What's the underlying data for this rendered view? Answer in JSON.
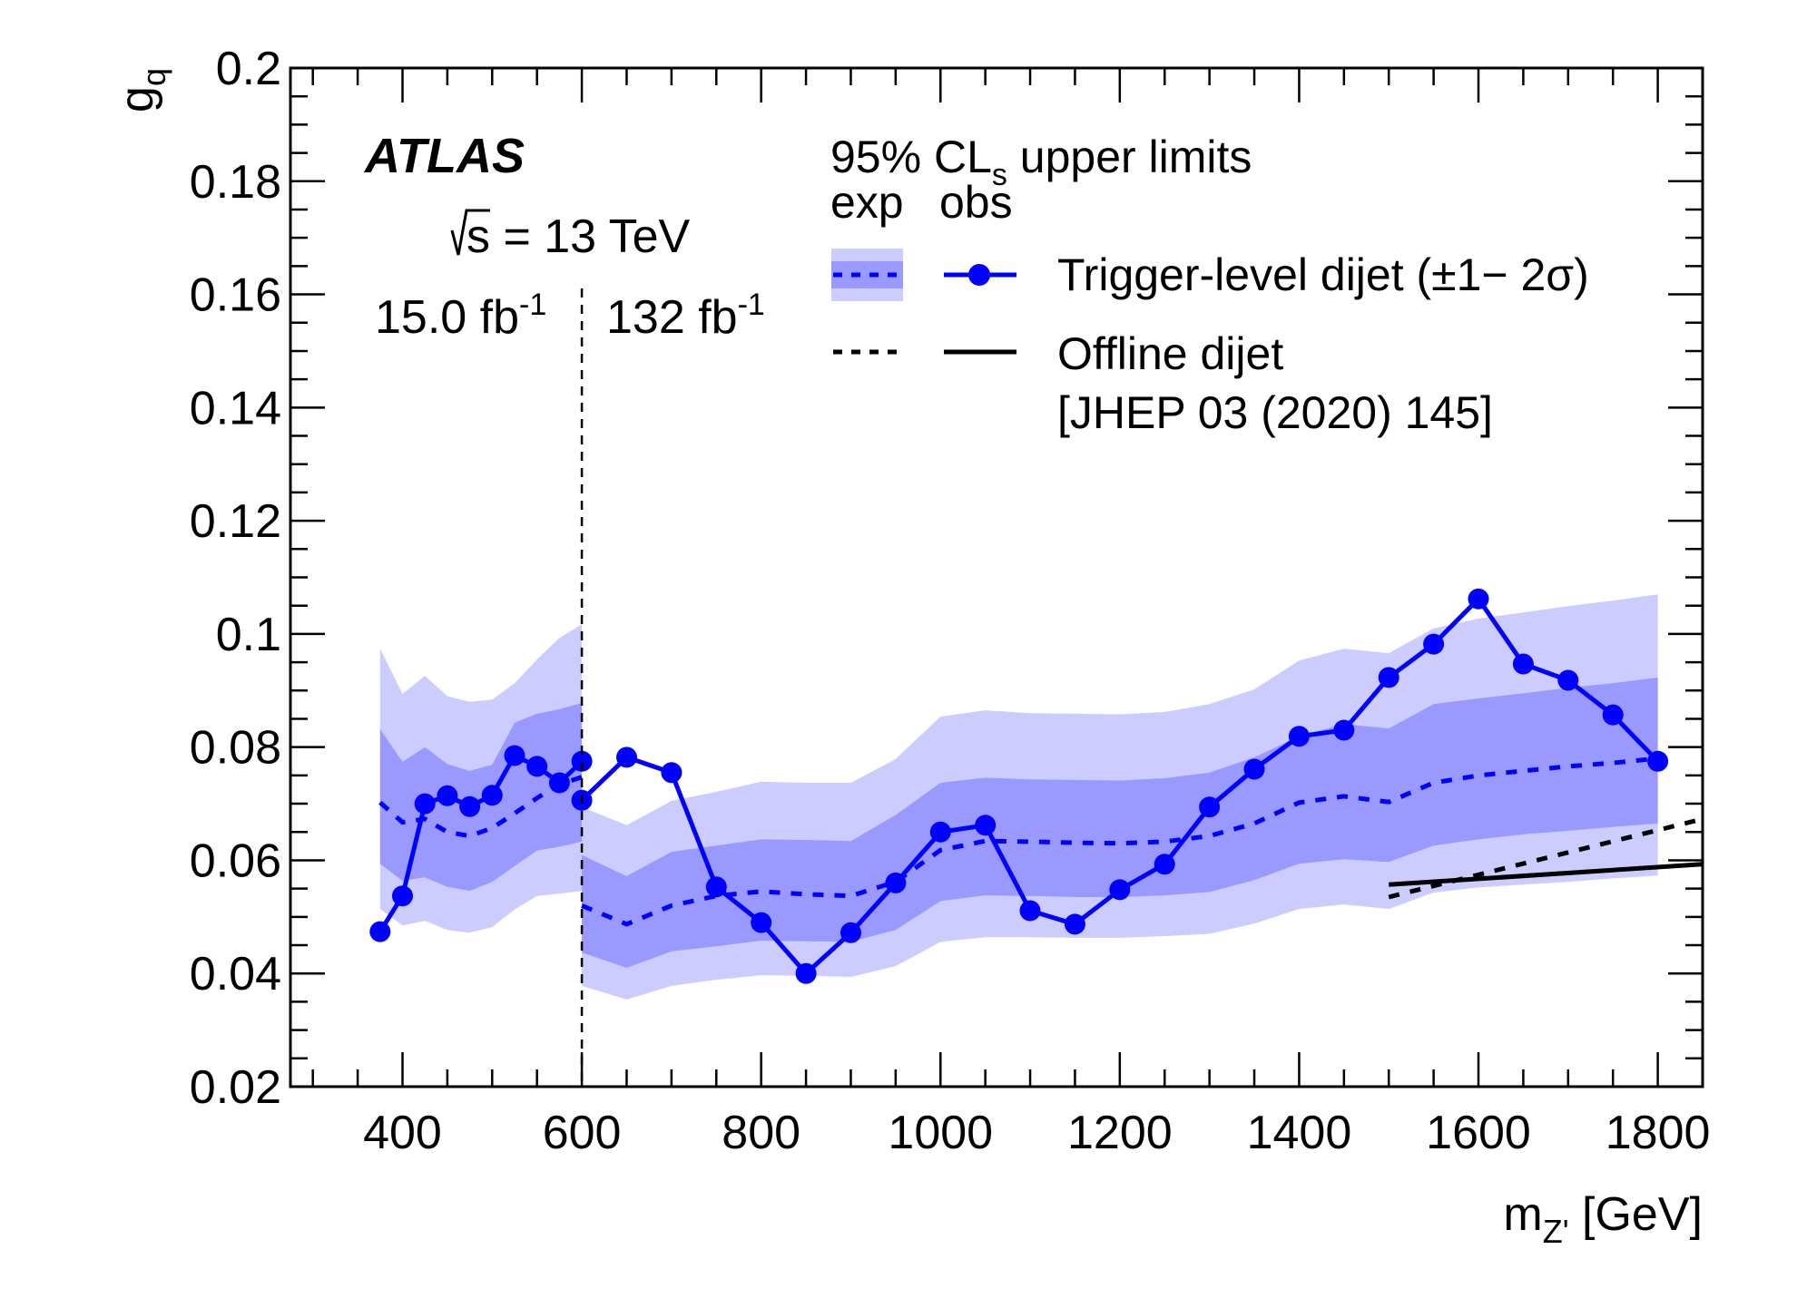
{
  "chart_data": {
    "type": "line",
    "title": "",
    "xlabel": "m_Z' [GeV]",
    "xlabel_parts": {
      "main": "m",
      "sub": "Z'",
      "unit": " [GeV]"
    },
    "ylabel": "g_q",
    "ylabel_parts": {
      "main": "g",
      "sub": "q"
    },
    "xlim": [
      275,
      1850
    ],
    "ylim": [
      0.02,
      0.2
    ],
    "x_ticks": [
      400,
      600,
      800,
      1000,
      1200,
      1400,
      1600,
      1800
    ],
    "x_tick_labels": [
      "400",
      "600",
      "800",
      "1000",
      "1200",
      "1400",
      "1600",
      "1800"
    ],
    "x_minor_step": 50,
    "y_ticks": [
      0.02,
      0.04,
      0.06,
      0.08,
      0.1,
      0.12,
      0.14,
      0.16,
      0.18,
      0.2
    ],
    "y_tick_labels": [
      "0.02",
      "0.04",
      "0.06",
      "0.08",
      "0.1",
      "0.12",
      "0.14",
      "0.16",
      "0.18",
      "0.2"
    ],
    "y_minor_step": 0.005,
    "grid": false,
    "annotations": {
      "experiment": "ATLAS",
      "energy_prefix": "s",
      "energy_text": " = 13 TeV",
      "lumi_left": "15.0 fb",
      "lumi_left_sup": "-1",
      "lumi_right": "132 fb",
      "lumi_right_sup": "-1",
      "divider_x": 600
    },
    "legend": {
      "placement": "top-right",
      "header_main": "95% CL",
      "header_sub": "s",
      "header_rest": " upper limits",
      "col_exp": "exp",
      "col_obs": "obs",
      "entries": [
        {
          "label": "Trigger-level dijet (±1− 2σ)",
          "exp_style": "blue-dashed-with-bands",
          "obs_style": "blue-line-markers"
        },
        {
          "label": "Offline dijet",
          "label_line2": "[JHEP 03 (2020) 145]",
          "exp_style": "black-dashed",
          "obs_style": "black-solid"
        }
      ]
    },
    "colors": {
      "band_2sigma": "#ccccff",
      "band_1sigma": "#9999ff",
      "trigger": "#0000ff",
      "offline": "#000000"
    },
    "series": [
      {
        "name": "Trigger-level dijet 15.0 fb-1 (expected bands)",
        "kind": "bands",
        "x": [
          375,
          400,
          425,
          450,
          475,
          500,
          525,
          550,
          575,
          600
        ],
        "exp": [
          0.0702,
          0.0667,
          0.0673,
          0.065,
          0.0643,
          0.0657,
          0.0683,
          0.071,
          0.0734,
          0.0747
        ],
        "plus1": [
          0.0832,
          0.0774,
          0.08,
          0.077,
          0.0758,
          0.0769,
          0.0843,
          0.0859,
          0.0867,
          0.0878
        ],
        "minus1": [
          0.0594,
          0.0564,
          0.057,
          0.0553,
          0.0546,
          0.0562,
          0.059,
          0.0617,
          0.0624,
          0.0633
        ],
        "plus2": [
          0.0974,
          0.0894,
          0.0926,
          0.089,
          0.088,
          0.0884,
          0.0913,
          0.0955,
          0.0993,
          0.1017
        ],
        "minus2": [
          0.0514,
          0.0485,
          0.0493,
          0.0477,
          0.0472,
          0.0482,
          0.0513,
          0.0537,
          0.0541,
          0.0546
        ]
      },
      {
        "name": "Trigger-level dijet 132 fb-1 (expected bands)",
        "kind": "bands",
        "x": [
          600,
          650,
          700,
          750,
          800,
          850,
          900,
          950,
          1000,
          1050,
          1100,
          1150,
          1200,
          1250,
          1300,
          1350,
          1400,
          1450,
          1500,
          1550,
          1600,
          1650,
          1700,
          1750,
          1800
        ],
        "exp": [
          0.052,
          0.0487,
          0.052,
          0.0537,
          0.0545,
          0.054,
          0.0537,
          0.0562,
          0.0618,
          0.0634,
          0.0633,
          0.0631,
          0.063,
          0.0633,
          0.0643,
          0.0665,
          0.0702,
          0.0713,
          0.0703,
          0.0737,
          0.075,
          0.0758,
          0.0766,
          0.0772,
          0.078
        ],
        "plus1": [
          0.0609,
          0.0572,
          0.0615,
          0.0626,
          0.0637,
          0.0636,
          0.0634,
          0.068,
          0.0737,
          0.0746,
          0.0743,
          0.0742,
          0.0741,
          0.0745,
          0.0755,
          0.0782,
          0.0819,
          0.0841,
          0.0833,
          0.0876,
          0.0886,
          0.0895,
          0.0905,
          0.0913,
          0.0923
        ],
        "minus1": [
          0.0437,
          0.041,
          0.0439,
          0.0448,
          0.0458,
          0.0457,
          0.0456,
          0.0477,
          0.0528,
          0.0538,
          0.0537,
          0.0535,
          0.0535,
          0.0538,
          0.0544,
          0.0565,
          0.0594,
          0.0602,
          0.0597,
          0.0626,
          0.0637,
          0.0646,
          0.0652,
          0.0659,
          0.0665
        ],
        "plus2": [
          0.0694,
          0.0662,
          0.0705,
          0.0721,
          0.0739,
          0.0737,
          0.0737,
          0.0779,
          0.0854,
          0.0865,
          0.086,
          0.0859,
          0.0858,
          0.0862,
          0.0876,
          0.0902,
          0.0953,
          0.0974,
          0.0966,
          0.101,
          0.1027,
          0.1038,
          0.1049,
          0.1059,
          0.107
        ],
        "minus2": [
          0.0378,
          0.0354,
          0.0378,
          0.0389,
          0.0397,
          0.0396,
          0.0394,
          0.0413,
          0.0456,
          0.0464,
          0.0464,
          0.0463,
          0.0463,
          0.0466,
          0.047,
          0.0488,
          0.0514,
          0.0522,
          0.0514,
          0.0543,
          0.0552,
          0.0557,
          0.0562,
          0.0568,
          0.0573
        ]
      },
      {
        "name": "Trigger-level dijet 15.0 fb-1 (observed)",
        "kind": "observed",
        "x": [
          375,
          400,
          425,
          450,
          475,
          500,
          525,
          550,
          575,
          600
        ],
        "y": [
          0.0474,
          0.0537,
          0.07,
          0.0714,
          0.0695,
          0.0715,
          0.0785,
          0.0766,
          0.0737,
          0.0775
        ]
      },
      {
        "name": "Trigger-level dijet 132 fb-1 (observed)",
        "kind": "observed",
        "x": [
          600,
          650,
          700,
          750,
          800,
          850,
          900,
          950,
          1000,
          1050,
          1100,
          1150,
          1200,
          1250,
          1300,
          1350,
          1400,
          1450,
          1500,
          1550,
          1600,
          1650,
          1700,
          1750,
          1800
        ],
        "y": [
          0.0706,
          0.0782,
          0.0755,
          0.0553,
          0.049,
          0.04,
          0.0472,
          0.056,
          0.065,
          0.0662,
          0.0511,
          0.0487,
          0.0548,
          0.0593,
          0.0694,
          0.0761,
          0.0819,
          0.083,
          0.0923,
          0.0982,
          0.1062,
          0.0947,
          0.0918,
          0.0857,
          0.0775
        ]
      },
      {
        "name": "Offline dijet (expected)",
        "kind": "offline-exp",
        "x": [
          1500,
          1850
        ],
        "y": [
          0.0535,
          0.0673
        ]
      },
      {
        "name": "Offline dijet (observed)",
        "kind": "offline-obs",
        "x": [
          1500,
          1850
        ],
        "y": [
          0.0557,
          0.0593
        ]
      }
    ]
  }
}
